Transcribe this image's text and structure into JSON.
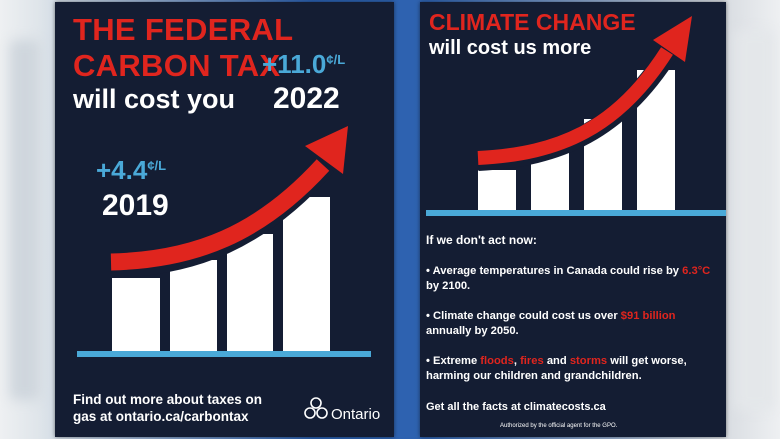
{
  "left_poster": {
    "headline_line1": "THE FEDERAL",
    "headline_line2": "CARBON TAX",
    "subhead": "will cost you",
    "price_2019": {
      "amount": "+4.4",
      "unit": "¢/L",
      "year": "2019"
    },
    "price_2022": {
      "amount": "+11.0",
      "unit": "¢/L",
      "year": "2022"
    },
    "footer_line1": "Find out more about taxes on",
    "footer_line2": "gas at ontario.ca/carbontax",
    "logo_text": "Ontario"
  },
  "right_poster": {
    "headline": "CLIMATE CHANGE",
    "subhead": "will cost us more",
    "intro": "If we don't act now:",
    "bullet1": {
      "pre": "• Average temperatures in Canada could rise by ",
      "hot": "6.3°C",
      "post": " by 2100."
    },
    "bullet2": {
      "pre": "• Climate change could cost us over ",
      "hot": "$91 billion",
      "post": " annually by 2050."
    },
    "bullet3": {
      "pre": "• Extreme ",
      "hot1": "floods",
      "mid1": ", ",
      "hot2": "fires",
      "mid2": " and ",
      "hot3": "storms",
      "post": " will get worse, harming our children and grandchildren."
    },
    "cta": "Get all the facts at climatecosts.ca",
    "disclaimer": "Authorized by the official agent for the GPO."
  },
  "colors": {
    "navy": "#141d33",
    "red": "#e0251e",
    "blue": "#4aa9d8",
    "white": "#ffffff"
  }
}
